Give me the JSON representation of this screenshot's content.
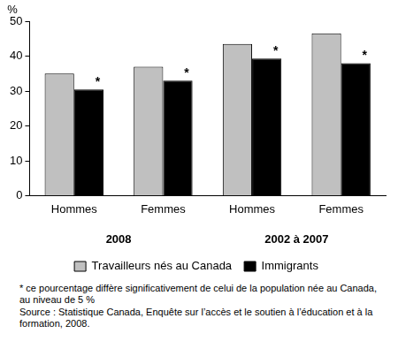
{
  "chart_data": {
    "type": "bar",
    "y_label": "%",
    "categories": [
      "Hommes",
      "Femmes",
      "Hommes",
      "Femmes"
    ],
    "groups": [
      "2008",
      "2002 à 2007"
    ],
    "series": [
      {
        "name": "Travailleurs nés au Canada",
        "color": "#c0c0c0",
        "values": [
          35,
          37,
          43.5,
          46.5
        ]
      },
      {
        "name": "Immigrants",
        "color": "#000000",
        "values": [
          30.5,
          33,
          39.3,
          38
        ],
        "annotations": [
          "*",
          "*",
          "*",
          "*"
        ]
      }
    ],
    "ylim": [
      0,
      50
    ],
    "yticks": [
      0,
      10,
      20,
      30,
      40,
      50
    ],
    "grid": false,
    "legend": "bottom",
    "notes": [
      "* ce pourcentage diffère significativement de celui de la population née au Canada, au niveau de 5 %",
      "Source : Statistique Canada, Enquête sur l’accès et le soutien à l’éducation et à la formation, 2008."
    ]
  }
}
